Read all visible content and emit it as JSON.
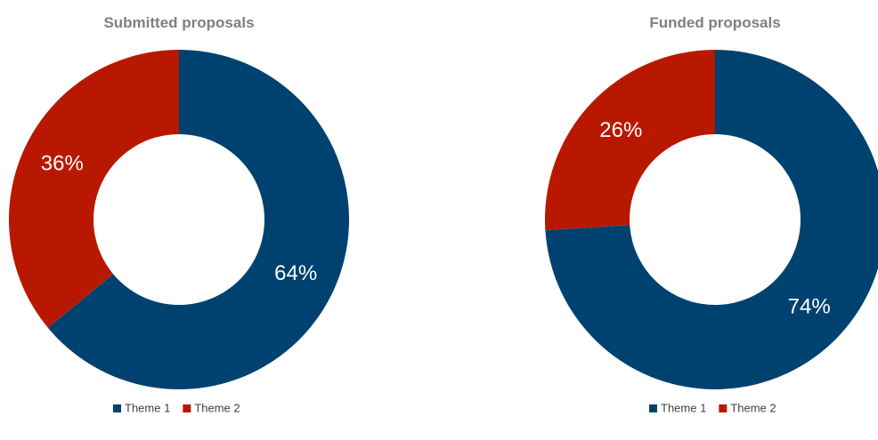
{
  "chart_data": [
    {
      "type": "pie",
      "title": "Submitted proposals",
      "categories": [
        "Theme 1",
        "Theme 2"
      ],
      "values": [
        64,
        36
      ],
      "value_labels": [
        "64%",
        "36%"
      ],
      "colors": [
        "#00426f",
        "#b91800"
      ],
      "legend": "bottom"
    },
    {
      "type": "pie",
      "title": "Funded proposals",
      "categories": [
        "Theme 1",
        "Theme 2"
      ],
      "values": [
        74,
        26
      ],
      "value_labels": [
        "74%",
        "26%"
      ],
      "colors": [
        "#00426f",
        "#b91800"
      ],
      "legend": "bottom"
    }
  ]
}
